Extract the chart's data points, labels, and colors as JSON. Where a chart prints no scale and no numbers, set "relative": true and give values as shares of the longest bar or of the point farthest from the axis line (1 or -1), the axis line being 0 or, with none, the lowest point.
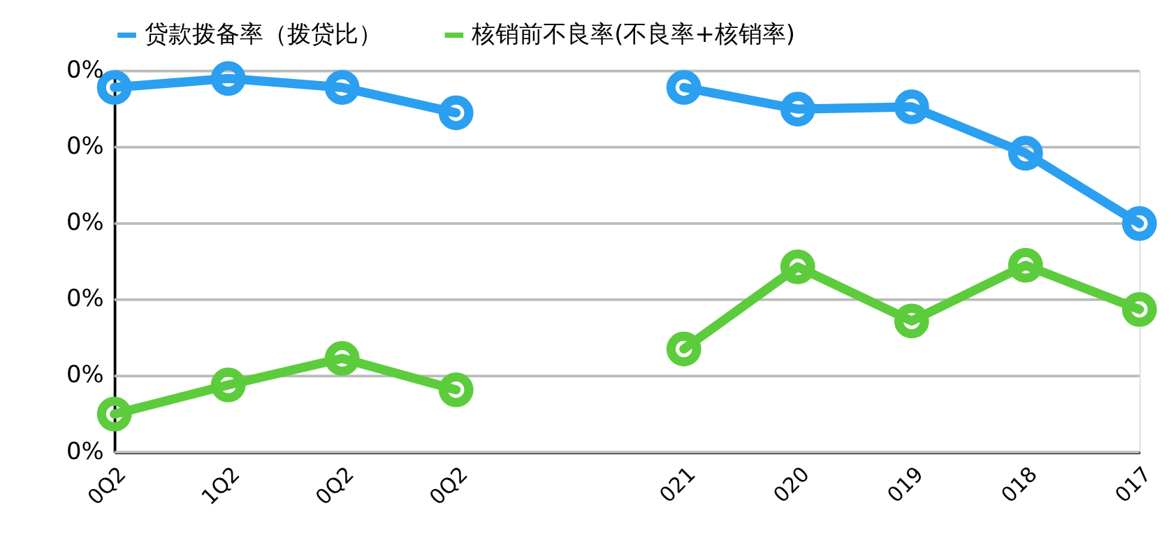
{
  "chart_data": {
    "type": "line",
    "relative": true,
    "categories": [
      "0Q2",
      "1Q2",
      "0Q2",
      "0Q2",
      null,
      "021",
      "020",
      "019",
      "018",
      "017"
    ],
    "series": [
      {
        "name": "贷款拨备率（拨贷比）",
        "color": "#2b9ff0",
        "values": [
          0.976,
          1.0,
          0.976,
          0.908,
          null,
          0.976,
          0.918,
          0.924,
          0.8,
          0.612
        ]
      },
      {
        "name": "核销前不良率(不良率+核销率)",
        "color": "#5ccc3c",
        "values": [
          0.102,
          0.18,
          0.251,
          0.167,
          null,
          0.276,
          0.496,
          0.351,
          0.5,
          0.382
        ]
      }
    ],
    "annotations": [
      "0%",
      "0%",
      "0%",
      "0%",
      "0%",
      "0%"
    ],
    "legend": "top",
    "marker": "circle",
    "line_style": "solid"
  }
}
